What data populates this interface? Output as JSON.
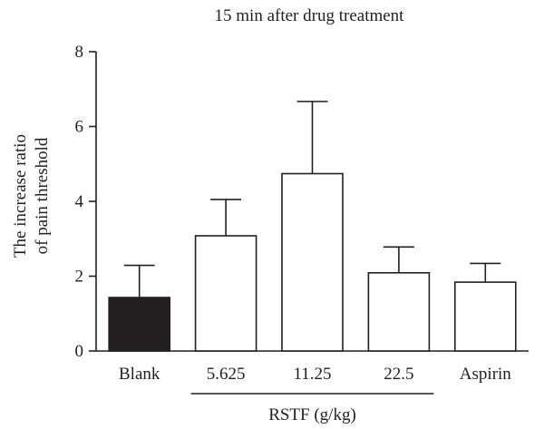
{
  "chart_data": {
    "type": "bar",
    "title": "15 min after drug treatment",
    "ylabel_lines": [
      "The increase ratio",
      "of pain threshold"
    ],
    "xlabel": "",
    "ylim": [
      0,
      8
    ],
    "yticks": [
      "0",
      "2",
      "4",
      "6",
      "8"
    ],
    "categories": [
      "Blank",
      "5.625",
      "11.25",
      "22.5",
      "Aspirin"
    ],
    "values": [
      1.43,
      3.08,
      4.74,
      2.09,
      1.84
    ],
    "errors": [
      0.86,
      0.97,
      1.93,
      0.69,
      0.5
    ],
    "bar_fills": [
      "#231f20",
      "#ffffff",
      "#ffffff",
      "#ffffff",
      "#ffffff"
    ],
    "group_label": "RSTF (g/kg)",
    "group_categories": [
      "5.625",
      "11.25",
      "22.5"
    ],
    "grid": false,
    "legend": "none"
  }
}
